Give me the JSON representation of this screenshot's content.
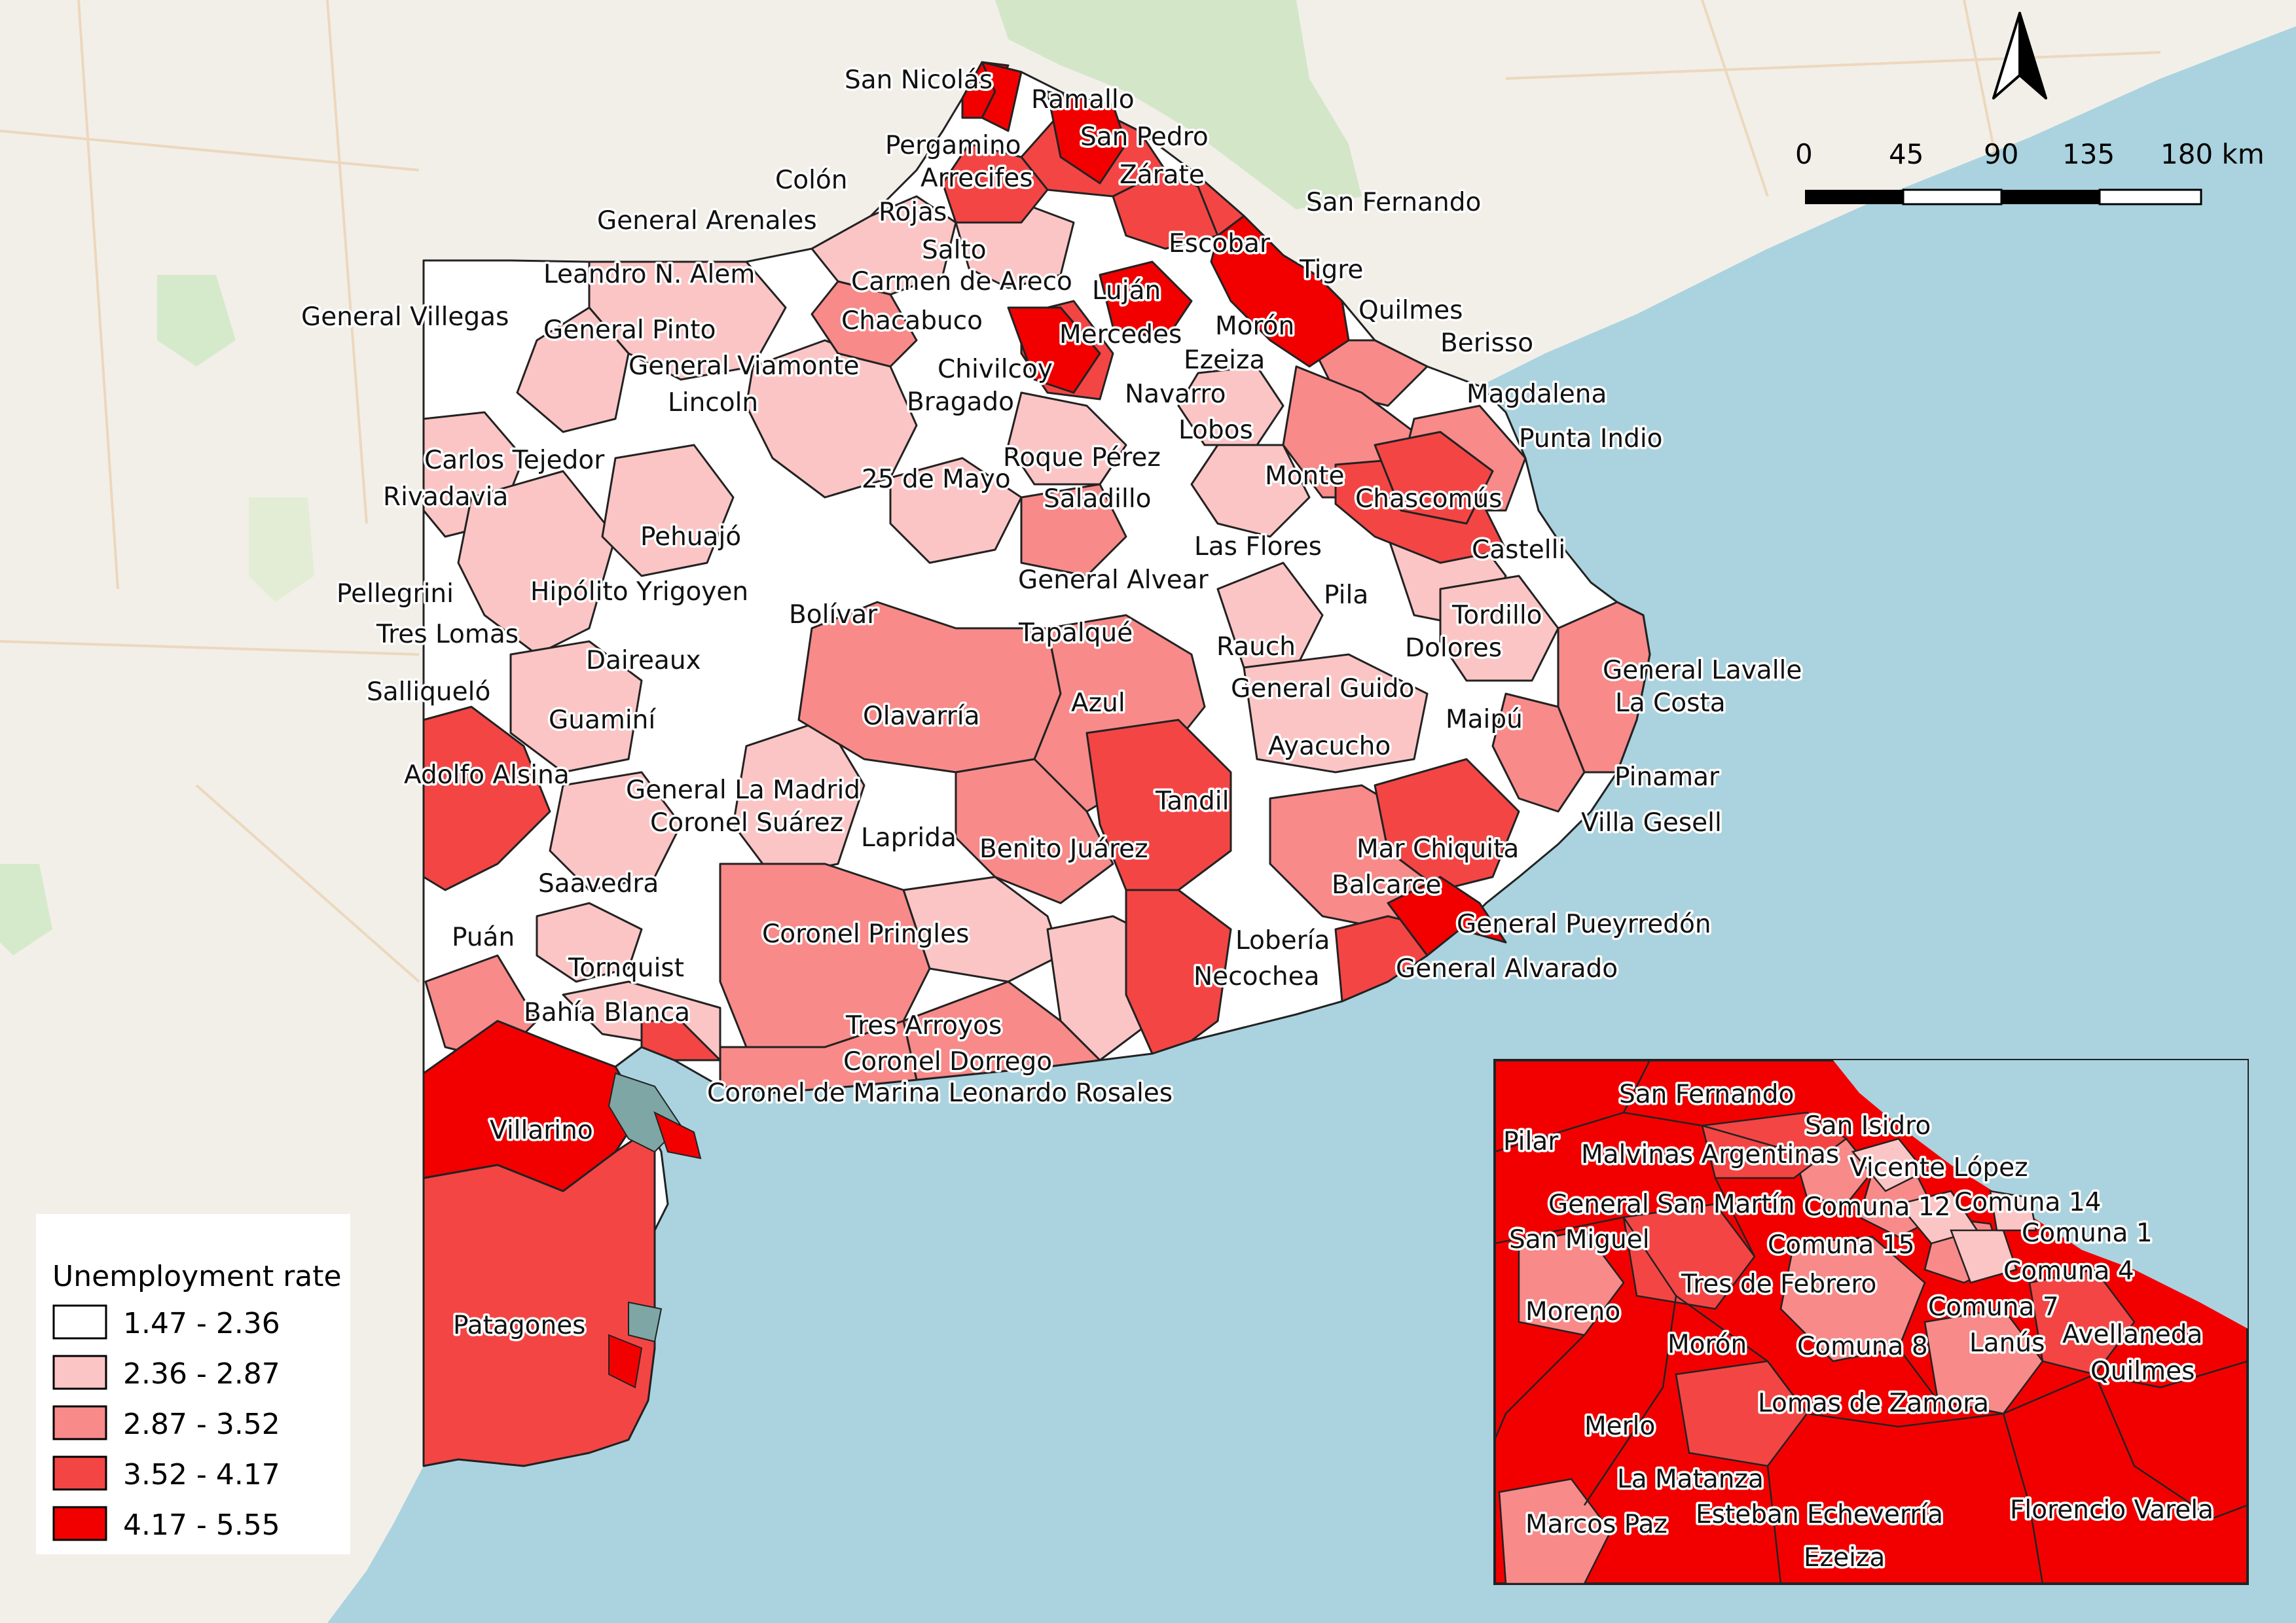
{
  "legend": {
    "title": "Unemployment rate",
    "classes": [
      {
        "label": "1.47 - 2.36",
        "color": "#ffffff"
      },
      {
        "label": "2.36 - 2.87",
        "color": "#fcc5c5"
      },
      {
        "label": "2.87 - 3.52",
        "color": "#f88a8a"
      },
      {
        "label": "3.52 - 4.17",
        "color": "#f44545"
      },
      {
        "label": "4.17 - 5.55",
        "color": "#f20000"
      }
    ]
  },
  "scalebar": {
    "ticks": [
      "0",
      "45",
      "90",
      "135",
      "180 km"
    ]
  },
  "colors": {
    "sea": "#aad3df",
    "land": "#f2efe9",
    "border": "#222222"
  },
  "labels": [
    {
      "id": "san-nicolas",
      "text": "San Nicolás"
    },
    {
      "id": "ramallo",
      "text": "Ramallo"
    },
    {
      "id": "san-pedro",
      "text": "San Pedro"
    },
    {
      "id": "pergamino",
      "text": "Pergamino"
    },
    {
      "id": "colon",
      "text": "Colón"
    },
    {
      "id": "arrecifes",
      "text": "Arrecifes"
    },
    {
      "id": "zarate",
      "text": "Zárate"
    },
    {
      "id": "san-fernando",
      "text": "San Fernando"
    },
    {
      "id": "general-arenales",
      "text": "General Arenales"
    },
    {
      "id": "rojas",
      "text": "Rojas"
    },
    {
      "id": "salto",
      "text": "Salto"
    },
    {
      "id": "escobar",
      "text": "Escobar"
    },
    {
      "id": "carmen-de-areco",
      "text": "Carmen de Areco"
    },
    {
      "id": "tigre",
      "text": "Tigre"
    },
    {
      "id": "leandro-n-alem",
      "text": "Leandro N. Alem"
    },
    {
      "id": "lujan",
      "text": "Luján"
    },
    {
      "id": "general-villegas",
      "text": "General Villegas"
    },
    {
      "id": "chacabuco",
      "text": "Chacabuco"
    },
    {
      "id": "quilmes",
      "text": "Quilmes"
    },
    {
      "id": "moron",
      "text": "Morón"
    },
    {
      "id": "general-pinto",
      "text": "General Pinto"
    },
    {
      "id": "mercedes",
      "text": "Mercedes"
    },
    {
      "id": "ezeiza",
      "text": "Ezeiza"
    },
    {
      "id": "berisso",
      "text": "Berisso"
    },
    {
      "id": "general-viamonte",
      "text": "General Viamonte"
    },
    {
      "id": "chivilcoy",
      "text": "Chivilcoy"
    },
    {
      "id": "magdalena",
      "text": "Magdalena"
    },
    {
      "id": "lincoln",
      "text": "Lincoln"
    },
    {
      "id": "bragado",
      "text": "Bragado"
    },
    {
      "id": "navarro",
      "text": "Navarro"
    },
    {
      "id": "lobos",
      "text": "Lobos"
    },
    {
      "id": "punta-indio",
      "text": "Punta Indio"
    },
    {
      "id": "roque-perez",
      "text": "Roque Pérez"
    },
    {
      "id": "carlos-tejedor",
      "text": "Carlos Tejedor"
    },
    {
      "id": "25-de-mayo",
      "text": "25 de Mayo"
    },
    {
      "id": "monte",
      "text": "Monte"
    },
    {
      "id": "rivadavia",
      "text": "Rivadavia"
    },
    {
      "id": "saladillo",
      "text": "Saladillo"
    },
    {
      "id": "chascomus",
      "text": "Chascomús"
    },
    {
      "id": "pehuajo",
      "text": "Pehuajó"
    },
    {
      "id": "las-flores",
      "text": "Las Flores"
    },
    {
      "id": "castelli",
      "text": "Castelli"
    },
    {
      "id": "general-alvear",
      "text": "General Alvear"
    },
    {
      "id": "pellegrini",
      "text": "Pellegrini"
    },
    {
      "id": "hipolito-yrigoyen",
      "text": "Hipólito Yrigoyen"
    },
    {
      "id": "pila",
      "text": "Pila"
    },
    {
      "id": "bolivar",
      "text": "Bolívar"
    },
    {
      "id": "tordillo",
      "text": "Tordillo"
    },
    {
      "id": "tres-lomas",
      "text": "Tres Lomas"
    },
    {
      "id": "tapalque",
      "text": "Tapalqué"
    },
    {
      "id": "rauch",
      "text": "Rauch"
    },
    {
      "id": "dolores",
      "text": "Dolores"
    },
    {
      "id": "daireaux",
      "text": "Daireaux"
    },
    {
      "id": "general-lavalle",
      "text": "General Lavalle"
    },
    {
      "id": "salliquelo",
      "text": "Salliqueló"
    },
    {
      "id": "general-guido",
      "text": "General Guido"
    },
    {
      "id": "la-costa",
      "text": "La Costa"
    },
    {
      "id": "azul",
      "text": "Azul"
    },
    {
      "id": "olavarria",
      "text": "Olavarría"
    },
    {
      "id": "maipu",
      "text": "Maipú"
    },
    {
      "id": "guamini",
      "text": "Guaminí"
    },
    {
      "id": "ayacucho",
      "text": "Ayacucho"
    },
    {
      "id": "adolfo-alsina",
      "text": "Adolfo Alsina"
    },
    {
      "id": "pinamar",
      "text": "Pinamar"
    },
    {
      "id": "general-la-madrid",
      "text": "General La Madrid"
    },
    {
      "id": "tandil",
      "text": "Tandil"
    },
    {
      "id": "coronel-suarez",
      "text": "Coronel Suárez"
    },
    {
      "id": "villa-gesell",
      "text": "Villa Gesell"
    },
    {
      "id": "laprida",
      "text": "Laprida"
    },
    {
      "id": "benito-juarez",
      "text": "Benito Juárez"
    },
    {
      "id": "mar-chiquita",
      "text": "Mar Chiquita"
    },
    {
      "id": "saavedra",
      "text": "Saavedra"
    },
    {
      "id": "balcarce",
      "text": "Balcarce"
    },
    {
      "id": "general-pueyrredon",
      "text": "General Pueyrredón"
    },
    {
      "id": "puan",
      "text": "Puán"
    },
    {
      "id": "coronel-pringles",
      "text": "Coronel Pringles"
    },
    {
      "id": "loberia",
      "text": "Lobería"
    },
    {
      "id": "tornquist",
      "text": "Tornquist"
    },
    {
      "id": "general-alvarado",
      "text": "General Alvarado"
    },
    {
      "id": "necochea",
      "text": "Necochea"
    },
    {
      "id": "bahia-blanca",
      "text": "Bahía Blanca"
    },
    {
      "id": "tres-arroyos",
      "text": "Tres Arroyos"
    },
    {
      "id": "coronel-dorrego",
      "text": "Coronel Dorrego"
    },
    {
      "id": "coronel-rosales",
      "text": "Coronel de Marina Leonardo Rosales"
    },
    {
      "id": "villarino",
      "text": "Villarino"
    },
    {
      "id": "patagones",
      "text": "Patagones"
    }
  ],
  "inset_labels": [
    {
      "id": "i-san-fernando",
      "text": "San Fernando"
    },
    {
      "id": "i-san-isidro",
      "text": "San Isidro"
    },
    {
      "id": "i-pilar",
      "text": "Pilar"
    },
    {
      "id": "i-malvinas-argentinas",
      "text": "Malvinas Argentinas"
    },
    {
      "id": "i-vicente-lopez",
      "text": "Vicente López"
    },
    {
      "id": "i-general-san-martin",
      "text": "General San Martín"
    },
    {
      "id": "i-comuna-12",
      "text": "Comuna 12"
    },
    {
      "id": "i-comuna-14",
      "text": "Comuna 14"
    },
    {
      "id": "i-san-miguel",
      "text": "San Miguel"
    },
    {
      "id": "i-comuna-1",
      "text": "Comuna 1"
    },
    {
      "id": "i-comuna-15",
      "text": "Comuna 15"
    },
    {
      "id": "i-comuna-4",
      "text": "Comuna 4"
    },
    {
      "id": "i-tres-de-febrero",
      "text": "Tres de Febrero"
    },
    {
      "id": "i-comuna-7",
      "text": "Comuna 7"
    },
    {
      "id": "i-moreno",
      "text": "Moreno"
    },
    {
      "id": "i-avellaneda",
      "text": "Avellaneda"
    },
    {
      "id": "i-moron",
      "text": "Morón"
    },
    {
      "id": "i-comuna-8",
      "text": "Comuna 8"
    },
    {
      "id": "i-lanus",
      "text": "Lanús"
    },
    {
      "id": "i-quilmes",
      "text": "Quilmes"
    },
    {
      "id": "i-lomas-de-zamora",
      "text": "Lomas de Zamora"
    },
    {
      "id": "i-merlo",
      "text": "Merlo"
    },
    {
      "id": "i-la-matanza",
      "text": "La Matanza"
    },
    {
      "id": "i-esteban-echeverria",
      "text": "Esteban Echeverría"
    },
    {
      "id": "i-florencio-varela",
      "text": "Florencio Varela"
    },
    {
      "id": "i-marcos-paz",
      "text": "Marcos Paz"
    },
    {
      "id": "i-ezeiza",
      "text": "Ezeiza"
    }
  ]
}
